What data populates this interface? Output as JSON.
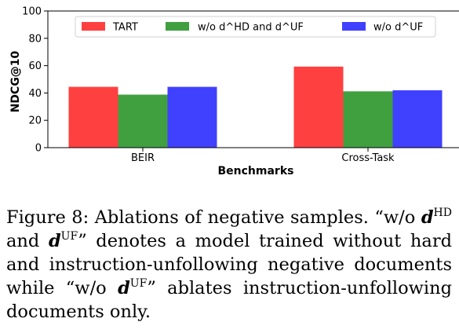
{
  "chart_data": {
    "type": "bar",
    "categories": [
      "BEIR",
      "Cross-Task"
    ],
    "series": [
      {
        "name": "TART",
        "values": [
          44.5,
          59.3
        ],
        "color": "#ff4040"
      },
      {
        "name": "w/o d^HD and d^UF",
        "values": [
          38.8,
          41.2
        ],
        "color": "#40a040"
      },
      {
        "name": "w/o d^UF",
        "values": [
          44.5,
          42.0
        ],
        "color": "#4040ff"
      }
    ],
    "xlabel": "Benchmarks",
    "ylabel": "NDCG@10",
    "ylim": [
      0,
      100
    ],
    "yticks": [
      0,
      20,
      40,
      60,
      80,
      100
    ],
    "legend_position": "top",
    "grid": false
  },
  "caption": {
    "label": "Figure 8:",
    "text1": "Ablations of negative samples. “w/o",
    "d": "d",
    "sup_hd": "HD",
    "and": "and",
    "sup_uf": "UF",
    "text2": "” denotes a model trained without hard and instruction-unfollowing negative documents while “w/o",
    "text3": "” ablates instruction-unfollowing documents only."
  }
}
